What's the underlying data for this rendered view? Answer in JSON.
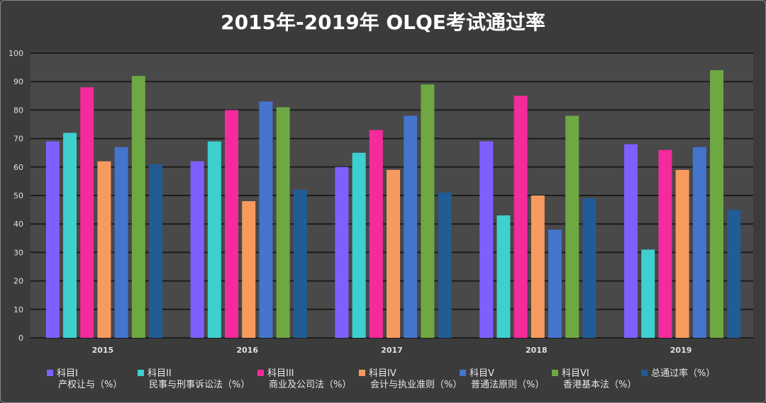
{
  "chart_data": {
    "type": "bar",
    "title": "2015年-2019年 OLQE考试通过率",
    "categories": [
      "2015",
      "2016",
      "2017",
      "2018",
      "2019"
    ],
    "ylim": [
      0,
      100
    ],
    "yticks": [
      0,
      10,
      20,
      30,
      40,
      50,
      60,
      70,
      80,
      90,
      100
    ],
    "grid": true,
    "legend_position": "bottom",
    "series": [
      {
        "name": "科目I 产权让与（%）",
        "name_line1": "科目I",
        "name_line2": "产权让与（%）",
        "color": "#7f5fff",
        "values": [
          69,
          62,
          60,
          69,
          68
        ]
      },
      {
        "name": "科目II 民事与刑事诉讼法（%）",
        "name_line1": "科目II",
        "name_line2": "民事与刑事诉讼法（%）",
        "color": "#3ecfcf",
        "values": [
          72,
          69,
          65,
          43,
          31
        ]
      },
      {
        "name": "科目III 商业及公司法（%）",
        "name_line1": "科目III",
        "name_line2": "商业及公司法（%）",
        "color": "#f52a9c",
        "values": [
          88,
          80,
          73,
          85,
          66
        ]
      },
      {
        "name": "科目IV 会计与执业准则（%）",
        "name_line1": "科目IV",
        "name_line2": "会计与执业准则（%）",
        "color": "#f79a5e",
        "values": [
          62,
          48,
          59,
          50,
          59
        ]
      },
      {
        "name": "科目V 普通法原则（%）",
        "name_line1": "科目V",
        "name_line2": "普通法原则（%）",
        "color": "#4474cc",
        "values": [
          67,
          83,
          78,
          38,
          67
        ]
      },
      {
        "name": "科目VI 香港基本法（%）",
        "name_line1": "科目VI",
        "name_line2": "香港基本法（%）",
        "color": "#6ea842",
        "values": [
          92,
          81,
          89,
          78,
          94
        ]
      },
      {
        "name": "总通过率（%）",
        "name_line1": "总通过率（%）",
        "name_line2": "",
        "color": "#215c94",
        "values": [
          61,
          52,
          51,
          49,
          45
        ]
      }
    ]
  }
}
